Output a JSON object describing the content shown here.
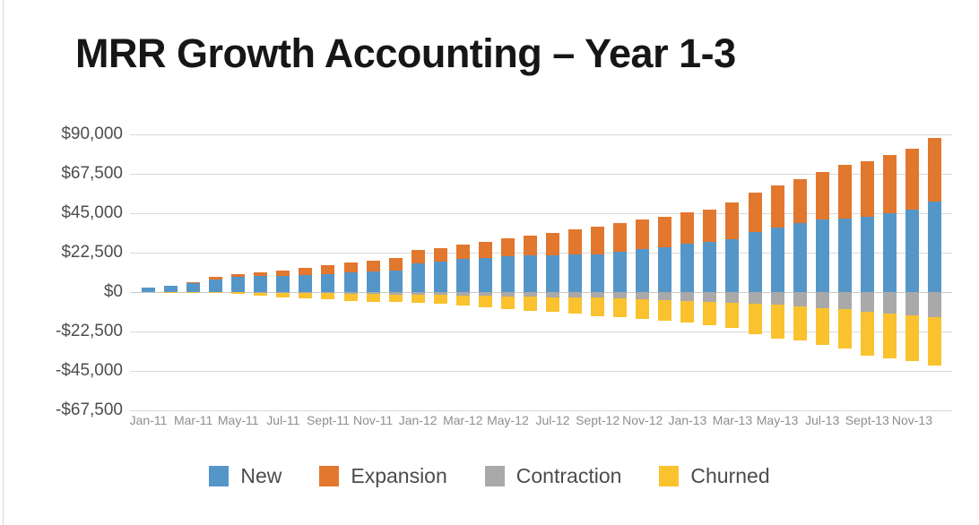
{
  "title": "MRR Growth Accounting – Year 1-3",
  "colors": {
    "new": "#5596c9",
    "expansion": "#e2772e",
    "contraction": "#a9a9a9",
    "churned": "#f9c22e",
    "grid_line": "#d9d9d9",
    "zero_line": "#c9c9c9",
    "title_text": "#161616",
    "y_label_text": "#4d4d4d",
    "x_label_text": "#8e8e8e",
    "legend_text": "#4c4c4c"
  },
  "chart_data": {
    "type": "bar",
    "stacked": true,
    "title": "MRR Growth Accounting – Year 1-3",
    "xlabel": "",
    "ylabel": "",
    "grid": true,
    "legend_position": "bottom",
    "ylim": [
      -67500,
      90000
    ],
    "ytick_step": 22500,
    "yticks": [
      90000,
      67500,
      45000,
      22500,
      0,
      -22500,
      -45000,
      -67500
    ],
    "ytick_labels": [
      "$90,000",
      "$67,500",
      "$45,000",
      "$22,500",
      "$0",
      "-$22,500",
      "-$45,000",
      "-$67,500"
    ],
    "x": [
      "Jan-11",
      "Feb-11",
      "Mar-11",
      "Apr-11",
      "May-11",
      "Jun-11",
      "Jul-11",
      "Aug-11",
      "Sept-11",
      "Oct-11",
      "Nov-11",
      "Dec-11",
      "Jan-12",
      "Feb-12",
      "Mar-12",
      "Apr-12",
      "May-12",
      "Jun-12",
      "Jul-12",
      "Aug-12",
      "Sept-12",
      "Oct-12",
      "Nov-12",
      "Dec-12",
      "Jan-13",
      "Feb-13",
      "Mar-13",
      "Apr-13",
      "May-13",
      "Jun-13",
      "Jul-13",
      "Aug-13",
      "Sept-13",
      "Oct-13",
      "Nov-13",
      "Dec-13"
    ],
    "x_tick_labels": [
      "Jan-11",
      "Mar-11",
      "May-11",
      "Jul-11",
      "Sept-11",
      "Nov-11",
      "Jan-12",
      "Mar-12",
      "May-12",
      "Jul-12",
      "Sept-12",
      "Nov-12",
      "Jan-13",
      "Mar-13",
      "May-13",
      "Jul-13",
      "Sept-13",
      "Nov-13"
    ],
    "x_tick_every": 2,
    "series": [
      {
        "name": "New",
        "color": "#5596c9",
        "values": [
          2600,
          3700,
          5400,
          7400,
          8500,
          9200,
          9100,
          9700,
          10300,
          11000,
          11700,
          12300,
          16200,
          17500,
          18900,
          19600,
          20300,
          20800,
          21100,
          21400,
          21700,
          23000,
          24400,
          25800,
          27800,
          28800,
          30000,
          34200,
          36700,
          39600,
          41300,
          42100,
          43000,
          44800,
          47000,
          51500
        ]
      },
      {
        "name": "Expansion",
        "color": "#e2772e",
        "values": [
          100,
          200,
          400,
          1100,
          1500,
          2100,
          3300,
          4200,
          5000,
          5700,
          6300,
          6900,
          7900,
          7800,
          8000,
          9000,
          10200,
          11500,
          12900,
          14300,
          15700,
          16300,
          16900,
          17400,
          17600,
          18500,
          20900,
          22400,
          24200,
          25000,
          27100,
          30500,
          31500,
          33200,
          34800,
          36500
        ]
      },
      {
        "name": "Contraction",
        "color": "#a9a9a9",
        "values": [
          -50,
          -100,
          -150,
          -200,
          -250,
          -300,
          -400,
          -500,
          -650,
          -800,
          -1000,
          -1300,
          -1500,
          -1700,
          -2000,
          -2200,
          -2500,
          -2700,
          -2900,
          -3100,
          -3200,
          -3600,
          -4200,
          -4800,
          -5000,
          -5400,
          -5900,
          -6400,
          -7300,
          -8100,
          -9000,
          -9800,
          -11500,
          -12300,
          -13200,
          -14200
        ]
      },
      {
        "name": "Churned",
        "color": "#f9c22e",
        "values": [
          -200,
          -350,
          -500,
          -650,
          -850,
          -1500,
          -2500,
          -2900,
          -3500,
          -4100,
          -4600,
          -4400,
          -4700,
          -5100,
          -5800,
          -6300,
          -7000,
          -7800,
          -8600,
          -9300,
          -10400,
          -10900,
          -11200,
          -11600,
          -12500,
          -13500,
          -14500,
          -17800,
          -19100,
          -19500,
          -21100,
          -22400,
          -25000,
          -25600,
          -26300,
          -27900
        ]
      }
    ]
  },
  "legend": {
    "items": [
      {
        "label": "New"
      },
      {
        "label": "Expansion"
      },
      {
        "label": "Contraction"
      },
      {
        "label": "Churned"
      }
    ]
  }
}
